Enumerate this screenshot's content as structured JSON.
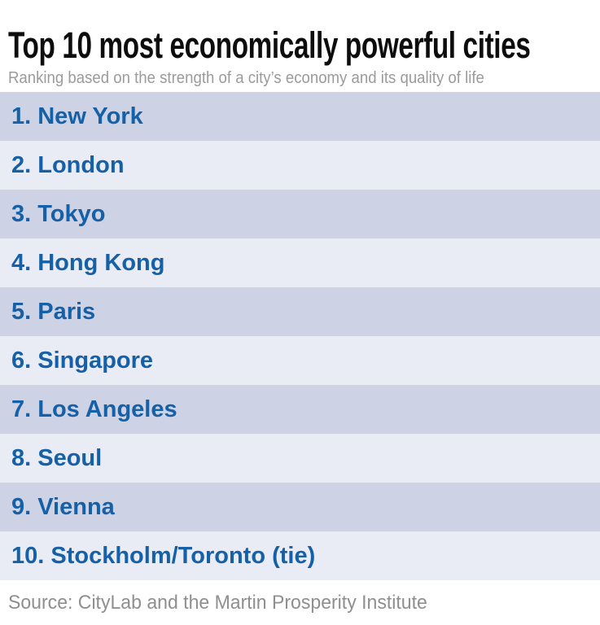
{
  "header": {
    "title": "Top 10 most economically powerful cities",
    "subtitle": "Ranking based on the strength of a city’s economy and its quality of life"
  },
  "ranking": {
    "items": [
      {
        "rank": 1,
        "city": "New York",
        "label": "1. New York"
      },
      {
        "rank": 2,
        "city": "London",
        "label": "2. London"
      },
      {
        "rank": 3,
        "city": "Tokyo",
        "label": "3. Tokyo"
      },
      {
        "rank": 4,
        "city": "Hong Kong",
        "label": "4. Hong Kong"
      },
      {
        "rank": 5,
        "city": "Paris",
        "label": "5. Paris"
      },
      {
        "rank": 6,
        "city": "Singapore",
        "label": "6. Singapore"
      },
      {
        "rank": 7,
        "city": "Los Angeles",
        "label": "7. Los Angeles"
      },
      {
        "rank": 8,
        "city": "Seoul",
        "label": "8. Seoul"
      },
      {
        "rank": 9,
        "city": "Vienna",
        "label": "9. Vienna"
      },
      {
        "rank": 10,
        "city": "Stockholm/Toronto (tie)",
        "label": "10. Stockholm/Toronto (tie)"
      }
    ]
  },
  "footer": {
    "source": "Source: CityLab and the Martin Prosperity Institute"
  },
  "colors": {
    "row_odd_bg": "#cdd3e5",
    "row_even_bg": "#e9ecf4",
    "city_text": "#1560a6",
    "title_text": "#0d0d0d",
    "subtitle_text": "#9b9b9b",
    "source_text": "#8f8f8f"
  },
  "chart_data": {
    "type": "table",
    "title": "Top 10 most economically powerful cities",
    "subtitle": "Ranking based on the strength of a city’s economy and its quality of life",
    "columns": [
      "rank",
      "city"
    ],
    "rows": [
      [
        1,
        "New York"
      ],
      [
        2,
        "London"
      ],
      [
        3,
        "Tokyo"
      ],
      [
        4,
        "Hong Kong"
      ],
      [
        5,
        "Paris"
      ],
      [
        6,
        "Singapore"
      ],
      [
        7,
        "Los Angeles"
      ],
      [
        8,
        "Seoul"
      ],
      [
        9,
        "Vienna"
      ],
      [
        10,
        "Stockholm/Toronto (tie)"
      ]
    ],
    "source": "Source: CityLab and the Martin Prosperity Institute",
    "layout_hints": {
      "row_striping": "alternating",
      "odd_row_color": "#cdd3e5",
      "even_row_color": "#e9ecf4"
    }
  }
}
